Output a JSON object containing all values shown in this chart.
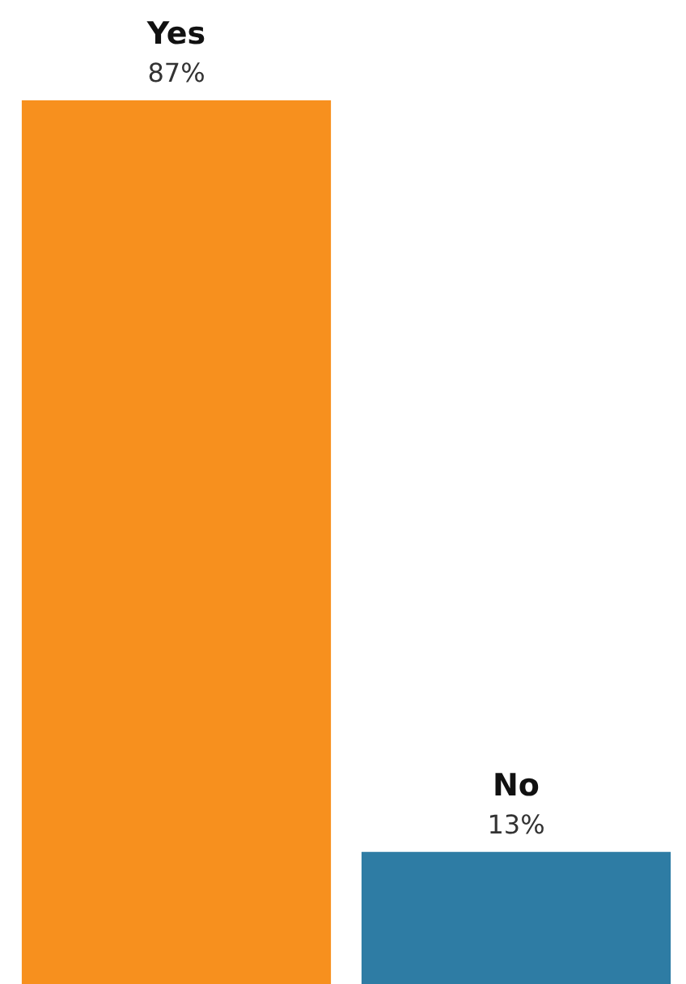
{
  "chart_data": {
    "type": "bar",
    "categories": [
      "Yes",
      "No"
    ],
    "values": [
      87,
      13
    ],
    "colors": [
      "#f7901e",
      "#2e7ca4"
    ],
    "value_labels": [
      "87%",
      "13%"
    ]
  }
}
